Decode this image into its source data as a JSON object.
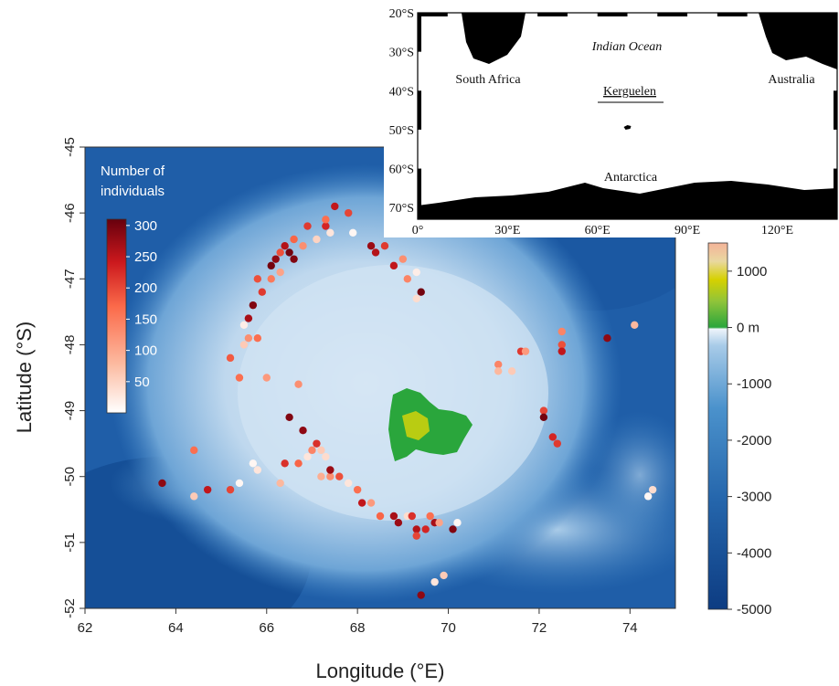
{
  "map": {
    "x_label": "Longitude (°E)",
    "y_label": "Latitude (°S)",
    "x_ticks": [
      62,
      64,
      66,
      68,
      70,
      72,
      74
    ],
    "y_ticks": [
      -45,
      -46,
      -47,
      -48,
      -49,
      -50,
      -51,
      -52
    ],
    "x_range": [
      62,
      75
    ],
    "y_range": [
      -52,
      -45
    ]
  },
  "legend": {
    "title_line1": "Number of",
    "title_line2": "individuals",
    "ticks": [
      300,
      250,
      200,
      150,
      100,
      50
    ],
    "range": [
      0,
      310
    ],
    "colors": [
      "#ffffff",
      "#fcbba1",
      "#fb6a4a",
      "#cb181d",
      "#67000d"
    ]
  },
  "colorbar": {
    "ticks": [
      {
        "label": "1000",
        "value": 1000
      },
      {
        "label": "0 m",
        "value": 0
      },
      {
        "label": "-1000",
        "value": -1000
      },
      {
        "label": "-2000",
        "value": -2000
      },
      {
        "label": "-3000",
        "value": -3000
      },
      {
        "label": "-4000",
        "value": -4000
      },
      {
        "label": "-5000",
        "value": -5000
      }
    ],
    "range": [
      -5000,
      1500
    ],
    "colors": {
      "deep": "#0d3c82",
      "mid": "#3c86c6",
      "shallow": "#cfe3f3",
      "land_low": "#2aa63c",
      "land_mid": "#d6d100",
      "land_high": "#f4b399"
    }
  },
  "inset": {
    "labels": {
      "ocean": "Indian Ocean",
      "africa": "South Africa",
      "australia": "Australia",
      "kerguelen": "Kerguelen",
      "antarctica": "Antarctica"
    },
    "lat_ticks": [
      {
        "label": "20°S",
        "value": -20
      },
      {
        "label": "30°S",
        "value": -30
      },
      {
        "label": "40°S",
        "value": -40
      },
      {
        "label": "50°S",
        "value": -50
      },
      {
        "label": "60°S",
        "value": -60
      },
      {
        "label": "70°S",
        "value": -70
      }
    ],
    "lon_ticks": [
      {
        "label": "0°",
        "value": 0
      },
      {
        "label": "30°E",
        "value": 30
      },
      {
        "label": "60°E",
        "value": 60
      },
      {
        "label": "90°E",
        "value": 90
      },
      {
        "label": "120°E",
        "value": 120
      }
    ],
    "lon_range": [
      0,
      140
    ],
    "lat_range": [
      -73,
      -20
    ],
    "kerguelen_point": [
      70,
      -49.3
    ]
  },
  "points": [
    [
      63.7,
      -50.1,
      280
    ],
    [
      64.4,
      -49.6,
      150
    ],
    [
      64.4,
      -50.3,
      60
    ],
    [
      64.7,
      -50.2,
      240
    ],
    [
      65.2,
      -50.2,
      190
    ],
    [
      65.4,
      -50.1,
      10
    ],
    [
      65.2,
      -48.2,
      170
    ],
    [
      65.4,
      -48.5,
      150
    ],
    [
      65.5,
      -48.0,
      60
    ],
    [
      65.5,
      -47.7,
      20
    ],
    [
      65.6,
      -47.6,
      260
    ],
    [
      65.7,
      -47.4,
      290
    ],
    [
      65.6,
      -47.9,
      120
    ],
    [
      65.8,
      -47.9,
      150
    ],
    [
      65.8,
      -49.9,
      30
    ],
    [
      65.7,
      -49.8,
      10
    ],
    [
      65.9,
      -47.2,
      200
    ],
    [
      65.8,
      -47.0,
      180
    ],
    [
      66.1,
      -46.8,
      300
    ],
    [
      66.2,
      -46.7,
      280
    ],
    [
      66.1,
      -47.0,
      140
    ],
    [
      66.3,
      -46.6,
      180
    ],
    [
      66.4,
      -46.5,
      250
    ],
    [
      66.5,
      -46.6,
      300
    ],
    [
      66.6,
      -46.7,
      290
    ],
    [
      66.6,
      -46.4,
      160
    ],
    [
      66.3,
      -46.9,
      100
    ],
    [
      66.8,
      -46.5,
      120
    ],
    [
      66.9,
      -46.2,
      200
    ],
    [
      67.1,
      -46.4,
      50
    ],
    [
      67.3,
      -46.2,
      220
    ],
    [
      67.4,
      -46.3,
      30
    ],
    [
      67.5,
      -45.9,
      240
    ],
    [
      67.3,
      -46.1,
      150
    ],
    [
      67.8,
      -46.0,
      190
    ],
    [
      67.9,
      -46.3,
      10
    ],
    [
      66.0,
      -48.5,
      110
    ],
    [
      66.3,
      -50.1,
      80
    ],
    [
      66.4,
      -49.8,
      210
    ],
    [
      66.5,
      -49.1,
      290
    ],
    [
      66.8,
      -49.3,
      280
    ],
    [
      66.7,
      -48.6,
      120
    ],
    [
      66.7,
      -49.8,
      160
    ],
    [
      66.9,
      -49.7,
      30
    ],
    [
      67.0,
      -49.6,
      130
    ],
    [
      67.1,
      -49.5,
      210
    ],
    [
      67.2,
      -49.6,
      60
    ],
    [
      67.3,
      -49.7,
      40
    ],
    [
      67.2,
      -50.0,
      90
    ],
    [
      67.4,
      -50.0,
      120
    ],
    [
      67.4,
      -49.9,
      270
    ],
    [
      67.6,
      -50.0,
      180
    ],
    [
      67.8,
      -50.1,
      30
    ],
    [
      68.0,
      -50.2,
      150
    ],
    [
      68.1,
      -50.4,
      240
    ],
    [
      68.3,
      -50.4,
      110
    ],
    [
      68.5,
      -50.6,
      160
    ],
    [
      68.8,
      -50.6,
      260
    ],
    [
      68.9,
      -50.7,
      270
    ],
    [
      69.1,
      -50.6,
      40
    ],
    [
      69.2,
      -50.6,
      210
    ],
    [
      69.3,
      -50.8,
      250
    ],
    [
      69.5,
      -50.8,
      220
    ],
    [
      69.7,
      -50.7,
      260
    ],
    [
      69.6,
      -50.6,
      150
    ],
    [
      69.8,
      -50.7,
      100
    ],
    [
      70.1,
      -50.8,
      290
    ],
    [
      70.2,
      -50.7,
      10
    ],
    [
      69.7,
      -51.6,
      30
    ],
    [
      69.9,
      -51.5,
      60
    ],
    [
      69.4,
      -51.8,
      280
    ],
    [
      69.3,
      -50.9,
      190
    ],
    [
      68.3,
      -46.5,
      270
    ],
    [
      68.4,
      -46.6,
      250
    ],
    [
      68.6,
      -46.5,
      200
    ],
    [
      68.8,
      -46.8,
      240
    ],
    [
      69.0,
      -46.7,
      120
    ],
    [
      69.1,
      -47.0,
      130
    ],
    [
      69.3,
      -46.9,
      20
    ],
    [
      69.4,
      -47.2,
      300
    ],
    [
      69.3,
      -47.3,
      40
    ],
    [
      71.1,
      -48.3,
      130
    ],
    [
      71.1,
      -48.4,
      80
    ],
    [
      71.4,
      -48.4,
      60
    ],
    [
      71.6,
      -48.1,
      200
    ],
    [
      71.7,
      -48.1,
      110
    ],
    [
      72.5,
      -47.8,
      130
    ],
    [
      72.5,
      -48.0,
      180
    ],
    [
      72.5,
      -48.1,
      240
    ],
    [
      73.5,
      -47.9,
      280
    ],
    [
      74.1,
      -47.7,
      80
    ],
    [
      72.1,
      -49.0,
      190
    ],
    [
      72.1,
      -49.1,
      300
    ],
    [
      72.3,
      -49.4,
      220
    ],
    [
      72.4,
      -49.5,
      200
    ],
    [
      74.4,
      -50.3,
      10
    ],
    [
      74.5,
      -50.2,
      40
    ]
  ]
}
